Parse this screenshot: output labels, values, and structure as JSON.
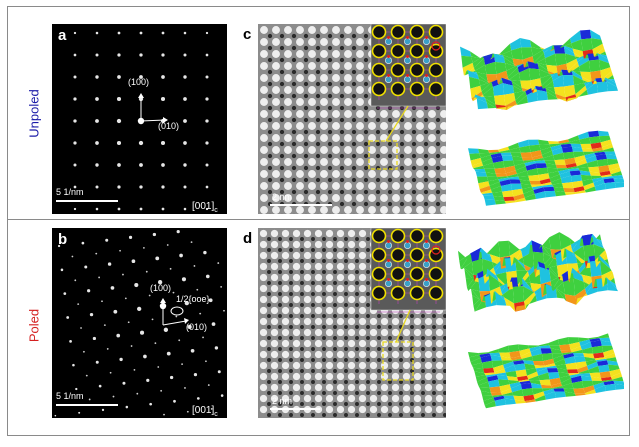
{
  "rows": [
    {
      "label": "Unpoled",
      "label_color": "#1a1aa8",
      "diffraction": {
        "tag": "a",
        "vector_1": "(100)",
        "vector_2": "(010)",
        "extra_label": "",
        "scale_bar": "5 1/nm",
        "zone_axis_main": "[001]",
        "zone_axis_sub": "c"
      },
      "hrtem": {
        "tag": "c",
        "scale_bar": "2 nm"
      },
      "surface": {
        "icon": "3d-surface-plot"
      }
    },
    {
      "label": "Poled",
      "label_color": "#d42020",
      "diffraction": {
        "tag": "b",
        "vector_1": "(100)",
        "vector_2": "(010)",
        "extra_label": "1/2{ooe}",
        "scale_bar": "5 1/nm",
        "zone_axis_main": "[001]",
        "zone_axis_sub": "c"
      },
      "hrtem": {
        "tag": "d",
        "scale_bar": "2 nm"
      },
      "surface": {
        "icon": "3d-surface-plot"
      }
    }
  ],
  "colors": {
    "inset_circle_yellow": "#f0e000",
    "inset_circle_red": "#e02020",
    "inset_lattice_purple": "#c040c0",
    "callout_yellow": "#e8d820"
  }
}
